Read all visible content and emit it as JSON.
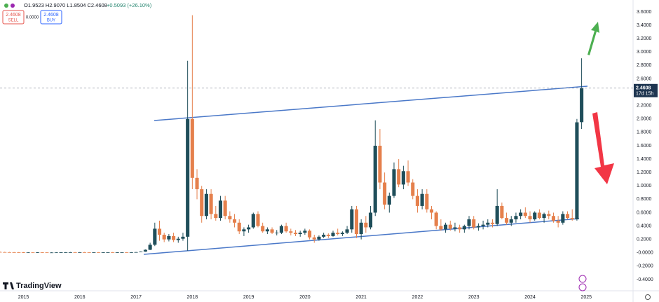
{
  "chart_data": {
    "type": "candlestick",
    "header": {
      "ohlc": "O1.9523 H2.9070 L1.8504 C2.4608",
      "change": "+0.5093 (+26.10%)"
    },
    "trade": {
      "sell_price": "2.4608",
      "sell": "SELL",
      "spread": "0.0000",
      "buy_price": "2.4608",
      "buy": "BUY"
    },
    "brand": "TradingView",
    "up_color": "#1f4e5a",
    "down_color": "#e5804c",
    "categories": [
      null,
      null,
      null,
      null,
      null,
      "2015",
      null,
      null,
      null,
      null,
      null,
      null,
      null,
      null,
      null,
      null,
      null,
      "2016",
      null,
      null,
      null,
      null,
      null,
      null,
      null,
      null,
      null,
      null,
      null,
      "2017",
      null,
      null,
      null,
      null,
      null,
      null,
      null,
      null,
      null,
      null,
      null,
      "2018",
      null,
      null,
      null,
      null,
      null,
      null,
      null,
      null,
      null,
      null,
      null,
      "2019",
      null,
      null,
      null,
      null,
      null,
      null,
      null,
      null,
      null,
      null,
      null,
      "2020",
      null,
      null,
      null,
      null,
      null,
      null,
      null,
      null,
      null,
      null,
      null,
      "2021",
      null,
      null,
      null,
      null,
      null,
      null,
      null,
      null,
      null,
      null,
      null,
      "2022",
      null,
      null,
      null,
      null,
      null,
      null,
      null,
      null,
      null,
      null,
      null,
      "2023",
      null,
      null,
      null,
      null,
      null,
      null,
      null,
      null,
      null,
      null,
      null,
      "2024",
      null,
      null,
      null,
      null,
      null,
      null,
      null,
      null,
      null,
      null,
      null,
      "2025"
    ],
    "open": [
      0.012,
      0.01,
      0.009,
      0.008,
      0.007,
      0.006,
      0.005,
      0.005,
      0.004,
      0.006,
      0.005,
      0.004,
      0.004,
      0.005,
      0.006,
      0.007,
      0.008,
      0.007,
      0.008,
      0.007,
      0.006,
      0.007,
      0.006,
      0.006,
      0.007,
      0.006,
      0.006,
      0.007,
      0.006,
      0.007,
      0.01,
      0.018,
      0.045,
      0.12,
      0.36,
      0.27,
      0.2,
      0.25,
      0.19,
      0.21,
      0.24,
      2.0,
      1.12,
      0.95,
      0.55,
      0.88,
      0.58,
      0.52,
      0.78,
      0.55,
      0.5,
      0.45,
      0.32,
      0.35,
      0.38,
      0.58,
      0.4,
      0.32,
      0.35,
      0.3,
      0.3,
      0.4,
      0.32,
      0.3,
      0.28,
      0.3,
      0.33,
      0.23,
      0.2,
      0.24,
      0.27,
      0.25,
      0.3,
      0.28,
      0.3,
      0.35,
      0.65,
      0.28,
      0.45,
      0.38,
      0.6,
      1.6,
      1.05,
      0.72,
      0.85,
      1.25,
      1.02,
      1.22,
      1.05,
      0.85,
      0.7,
      0.88,
      0.65,
      0.6,
      0.4,
      0.35,
      0.42,
      0.36,
      0.38,
      0.35,
      0.4,
      0.5,
      0.38,
      0.4,
      0.42,
      0.45,
      0.43,
      0.7,
      0.52,
      0.45,
      0.5,
      0.55,
      0.6,
      0.55,
      0.5,
      0.6,
      0.52,
      0.58,
      0.55,
      0.48,
      0.45,
      0.58,
      0.52,
      0.5,
      1.9523,
      null
    ],
    "high": [
      0.02,
      0.015,
      0.013,
      0.012,
      0.011,
      0.01,
      0.009,
      0.008,
      0.008,
      0.009,
      0.008,
      0.007,
      0.007,
      0.008,
      0.01,
      0.012,
      0.012,
      0.011,
      0.012,
      0.01,
      0.009,
      0.01,
      0.009,
      0.009,
      0.011,
      0.009,
      0.01,
      0.01,
      0.01,
      0.012,
      0.02,
      0.05,
      0.15,
      0.45,
      0.48,
      0.3,
      0.28,
      0.3,
      0.24,
      0.3,
      2.87,
      3.55,
      1.25,
      1.0,
      0.95,
      0.95,
      0.7,
      0.85,
      0.85,
      0.62,
      0.58,
      0.5,
      0.38,
      0.42,
      0.6,
      0.62,
      0.45,
      0.38,
      0.38,
      0.34,
      0.42,
      0.45,
      0.36,
      0.34,
      0.33,
      0.36,
      0.35,
      0.27,
      0.26,
      0.3,
      0.29,
      0.33,
      0.36,
      0.32,
      0.4,
      0.7,
      0.7,
      0.5,
      0.55,
      0.7,
      1.98,
      1.85,
      1.2,
      0.9,
      1.35,
      1.4,
      1.3,
      1.38,
      1.1,
      0.95,
      0.95,
      0.95,
      0.7,
      0.62,
      0.5,
      0.45,
      0.48,
      0.45,
      0.42,
      0.42,
      0.55,
      0.55,
      0.44,
      0.48,
      0.5,
      0.5,
      0.95,
      0.75,
      0.6,
      0.55,
      0.6,
      0.65,
      0.68,
      0.62,
      0.62,
      0.65,
      0.6,
      0.63,
      0.6,
      0.55,
      0.62,
      0.62,
      0.65,
      2.0,
      2.907,
      null
    ],
    "low": [
      0.008,
      0.007,
      0.006,
      0.005,
      0.004,
      0.003,
      0.003,
      0.003,
      0.003,
      0.004,
      0.003,
      0.002,
      0.002,
      0.003,
      0.004,
      0.005,
      0.006,
      0.005,
      0.006,
      0.005,
      0.004,
      0.005,
      0.004,
      0.004,
      0.005,
      0.004,
      0.004,
      0.005,
      0.004,
      0.005,
      0.008,
      0.015,
      0.04,
      0.1,
      0.18,
      0.16,
      0.17,
      0.16,
      0.15,
      0.18,
      0.03,
      0.95,
      0.8,
      0.45,
      0.5,
      0.5,
      0.48,
      0.48,
      0.5,
      0.45,
      0.38,
      0.28,
      0.25,
      0.3,
      0.36,
      0.38,
      0.3,
      0.28,
      0.28,
      0.26,
      0.28,
      0.3,
      0.26,
      0.25,
      0.24,
      0.27,
      0.2,
      0.15,
      0.18,
      0.22,
      0.22,
      0.24,
      0.26,
      0.25,
      0.28,
      0.3,
      0.22,
      0.2,
      0.3,
      0.35,
      0.55,
      0.95,
      0.65,
      0.6,
      0.82,
      0.98,
      0.95,
      1.0,
      0.8,
      0.6,
      0.65,
      0.6,
      0.5,
      0.35,
      0.33,
      0.3,
      0.33,
      0.32,
      0.3,
      0.3,
      0.35,
      0.35,
      0.33,
      0.35,
      0.38,
      0.38,
      0.4,
      0.5,
      0.42,
      0.4,
      0.45,
      0.5,
      0.52,
      0.45,
      0.48,
      0.5,
      0.45,
      0.5,
      0.45,
      0.38,
      0.42,
      0.5,
      0.48,
      0.48,
      1.8504,
      null
    ],
    "close": [
      0.01,
      0.009,
      0.008,
      0.007,
      0.006,
      0.005,
      0.005,
      0.004,
      0.006,
      0.005,
      0.004,
      0.004,
      0.005,
      0.006,
      0.007,
      0.008,
      0.007,
      0.008,
      0.007,
      0.006,
      0.007,
      0.006,
      0.006,
      0.007,
      0.006,
      0.006,
      0.007,
      0.006,
      0.007,
      0.01,
      0.018,
      0.045,
      0.12,
      0.36,
      0.27,
      0.2,
      0.25,
      0.19,
      0.21,
      0.24,
      2.0,
      1.12,
      0.95,
      0.55,
      0.88,
      0.58,
      0.52,
      0.78,
      0.55,
      0.5,
      0.45,
      0.32,
      0.35,
      0.38,
      0.58,
      0.4,
      0.32,
      0.35,
      0.3,
      0.3,
      0.4,
      0.32,
      0.3,
      0.28,
      0.3,
      0.33,
      0.23,
      0.2,
      0.24,
      0.27,
      0.25,
      0.3,
      0.28,
      0.3,
      0.35,
      0.65,
      0.28,
      0.45,
      0.38,
      0.6,
      1.6,
      1.05,
      0.72,
      0.85,
      1.25,
      1.02,
      1.22,
      1.05,
      0.85,
      0.7,
      0.88,
      0.65,
      0.6,
      0.4,
      0.35,
      0.42,
      0.36,
      0.38,
      0.35,
      0.4,
      0.5,
      0.38,
      0.4,
      0.42,
      0.45,
      0.43,
      0.7,
      0.52,
      0.45,
      0.5,
      0.55,
      0.6,
      0.55,
      0.5,
      0.6,
      0.52,
      0.58,
      0.55,
      0.48,
      0.45,
      0.58,
      0.52,
      0.5,
      1.95,
      2.4608,
      null
    ],
    "ylim": [
      -0.547,
      3.778
    ],
    "yticks": [
      {
        "value": 3.6,
        "label": "3.6000"
      },
      {
        "value": 3.4,
        "label": "3.4000"
      },
      {
        "value": 3.2,
        "label": "3.2000"
      },
      {
        "value": 3.0,
        "label": "3.0000"
      },
      {
        "value": 2.8,
        "label": "2.8000"
      },
      {
        "value": 2.6,
        "label": "2.6000"
      },
      {
        "value": 2.2,
        "label": "2.2000"
      },
      {
        "value": 2.0,
        "label": "2.0000"
      },
      {
        "value": 1.8,
        "label": "1.8000"
      },
      {
        "value": 1.6,
        "label": "1.6000"
      },
      {
        "value": 1.4,
        "label": "1.4000"
      },
      {
        "value": 1.2,
        "label": "1.2000"
      },
      {
        "value": 1.0,
        "label": "1.0000"
      },
      {
        "value": 0.8,
        "label": "0.8000"
      },
      {
        "value": 0.6,
        "label": "0.6000"
      },
      {
        "value": 0.4,
        "label": "0.4000"
      },
      {
        "value": 0.2,
        "label": "0.2000"
      },
      {
        "value": 0,
        "label": "-0.0000"
      },
      {
        "value": -0.2,
        "label": "-0.2000"
      },
      {
        "value": -0.4,
        "label": "-0.4000"
      }
    ],
    "grid": false,
    "last_price": 2.4608,
    "countdown": "17d 15h"
  }
}
